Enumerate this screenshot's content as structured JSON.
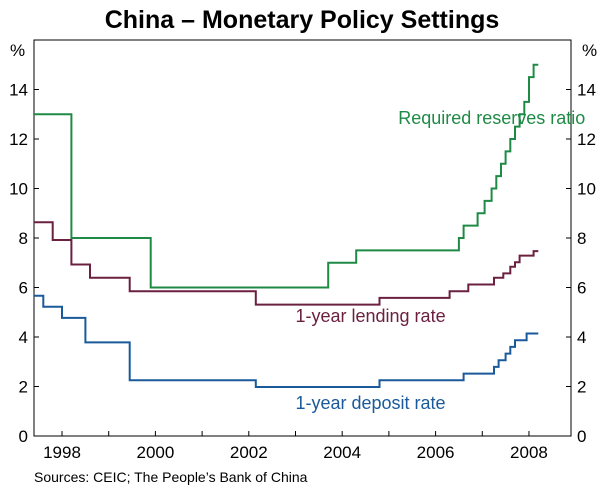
{
  "chart_data": {
    "type": "line",
    "title": "China – Monetary Policy Settings",
    "ylabel_left": "%",
    "ylabel_right": "%",
    "source": "Sources: CEIC; The People’s Bank of China",
    "xlim": [
      1997.4,
      2008.9
    ],
    "ylim": [
      0,
      16
    ],
    "yticks": [
      0,
      2,
      4,
      6,
      8,
      10,
      12,
      14
    ],
    "xticks": [
      1998,
      2000,
      2002,
      2004,
      2006,
      2008
    ],
    "xtick_labels": [
      "1998",
      "2000",
      "2002",
      "2004",
      "2006",
      "2008"
    ],
    "grid": false,
    "series": [
      {
        "name": "Required reserves ratio",
        "color": "#1e8a45",
        "label_pos": [
          2005.2,
          12.6
        ],
        "step_points": [
          [
            1997.4,
            13.0
          ],
          [
            1998.2,
            8.0
          ],
          [
            1999.9,
            6.0
          ],
          [
            2003.7,
            7.0
          ],
          [
            2004.3,
            7.5
          ],
          [
            2006.5,
            8.0
          ],
          [
            2006.6,
            8.5
          ],
          [
            2006.9,
            9.0
          ],
          [
            2007.05,
            9.5
          ],
          [
            2007.2,
            10.0
          ],
          [
            2007.3,
            10.5
          ],
          [
            2007.4,
            11.0
          ],
          [
            2007.5,
            11.5
          ],
          [
            2007.6,
            12.0
          ],
          [
            2007.7,
            12.5
          ],
          [
            2007.8,
            13.0
          ],
          [
            2007.9,
            13.5
          ],
          [
            2008.0,
            14.5
          ],
          [
            2008.1,
            15.0
          ],
          [
            2008.2,
            15.0
          ]
        ]
      },
      {
        "name": "1-year lending rate",
        "color": "#6b2040",
        "label_pos": [
          2003.0,
          4.6
        ],
        "step_points": [
          [
            1997.4,
            8.64
          ],
          [
            1997.8,
            7.92
          ],
          [
            1998.2,
            6.93
          ],
          [
            1998.6,
            6.39
          ],
          [
            1999.45,
            5.85
          ],
          [
            2002.15,
            5.31
          ],
          [
            2004.8,
            5.58
          ],
          [
            2006.3,
            5.85
          ],
          [
            2006.7,
            6.12
          ],
          [
            2007.25,
            6.39
          ],
          [
            2007.45,
            6.57
          ],
          [
            2007.6,
            6.84
          ],
          [
            2007.7,
            7.02
          ],
          [
            2007.8,
            7.29
          ],
          [
            2008.1,
            7.47
          ],
          [
            2008.2,
            7.47
          ]
        ]
      },
      {
        "name": "1-year deposit rate",
        "color": "#1a5a9a",
        "label_pos": [
          2003.0,
          1.1
        ],
        "step_points": [
          [
            1997.4,
            5.67
          ],
          [
            1997.6,
            5.22
          ],
          [
            1998.0,
            4.77
          ],
          [
            1998.5,
            3.78
          ],
          [
            1999.45,
            2.25
          ],
          [
            2002.15,
            1.98
          ],
          [
            2004.8,
            2.25
          ],
          [
            2006.6,
            2.52
          ],
          [
            2007.25,
            2.79
          ],
          [
            2007.35,
            3.06
          ],
          [
            2007.5,
            3.33
          ],
          [
            2007.6,
            3.6
          ],
          [
            2007.7,
            3.87
          ],
          [
            2007.95,
            4.14
          ],
          [
            2008.2,
            4.14
          ]
        ]
      }
    ]
  }
}
